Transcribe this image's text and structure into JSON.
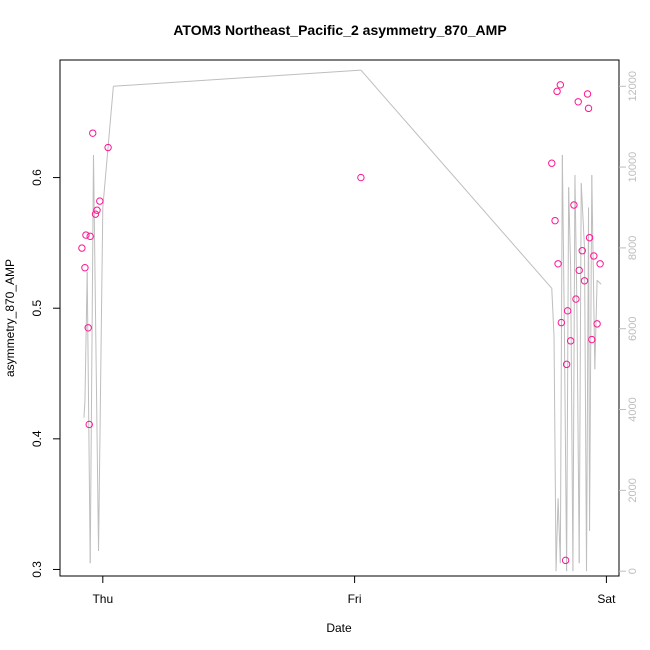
{
  "chart_data": {
    "type": "scatter",
    "title": "ATOM3 Northeast_Pacific_2 asymmetry_870_AMP",
    "xlabel": "Date",
    "ylabel": "asymmetry_870_AMP",
    "x_unit": "days since Wed 00:00",
    "xlim": [
      1.83,
      4.05
    ],
    "ylim": [
      0.295,
      0.69
    ],
    "y2lim": [
      -120,
      12650
    ],
    "x_ticks": [
      {
        "value": 2,
        "label": "Thu"
      },
      {
        "value": 3,
        "label": "Fri"
      },
      {
        "value": 4,
        "label": "Sat"
      }
    ],
    "y_ticks": [
      {
        "value": 0.3,
        "label": "0.3"
      },
      {
        "value": 0.4,
        "label": "0.4"
      },
      {
        "value": 0.5,
        "label": "0.5"
      },
      {
        "value": 0.6,
        "label": "0.6"
      }
    ],
    "y2_ticks": [
      {
        "value": 0,
        "label": "0"
      },
      {
        "value": 2000,
        "label": "2000"
      },
      {
        "value": 4000,
        "label": "4000"
      },
      {
        "value": 6000,
        "label": "6000"
      },
      {
        "value": 8000,
        "label": "8000"
      },
      {
        "value": 10000,
        "label": "10000"
      },
      {
        "value": 12000,
        "label": "12000"
      }
    ],
    "grid": false,
    "series": [
      {
        "name": "asymmetry_870_AMP",
        "axis": "left",
        "style": "points",
        "color": "#ff1493",
        "points": [
          [
            1.917,
            0.546
          ],
          [
            1.929,
            0.531
          ],
          [
            1.933,
            0.556
          ],
          [
            1.942,
            0.485
          ],
          [
            1.946,
            0.411
          ],
          [
            1.95,
            0.555
          ],
          [
            1.96,
            0.634
          ],
          [
            1.971,
            0.572
          ],
          [
            1.977,
            0.575
          ],
          [
            1.988,
            0.582
          ],
          [
            2.021,
            0.623
          ],
          [
            3.025,
            0.6
          ],
          [
            3.783,
            0.611
          ],
          [
            3.796,
            0.567
          ],
          [
            3.804,
            0.666
          ],
          [
            3.808,
            0.534
          ],
          [
            3.817,
            0.671
          ],
          [
            3.821,
            0.489
          ],
          [
            3.838,
            0.307
          ],
          [
            3.842,
            0.457
          ],
          [
            3.846,
            0.498
          ],
          [
            3.858,
            0.475
          ],
          [
            3.871,
            0.579
          ],
          [
            3.879,
            0.507
          ],
          [
            3.888,
            0.658
          ],
          [
            3.892,
            0.529
          ],
          [
            3.904,
            0.544
          ],
          [
            3.913,
            0.521
          ],
          [
            3.925,
            0.664
          ],
          [
            3.929,
            0.653
          ],
          [
            3.933,
            0.554
          ],
          [
            3.942,
            0.476
          ],
          [
            3.95,
            0.54
          ],
          [
            3.963,
            0.488
          ],
          [
            3.975,
            0.534
          ]
        ]
      },
      {
        "name": "secondary",
        "axis": "right",
        "style": "line",
        "color": "#bebebe",
        "points": [
          [
            1.925,
            3800
          ],
          [
            1.929,
            4200
          ],
          [
            1.938,
            7400
          ],
          [
            1.95,
            200
          ],
          [
            1.963,
            10300
          ],
          [
            1.983,
            500
          ],
          [
            2.0,
            9000
          ],
          [
            2.042,
            12000
          ],
          [
            3.025,
            12400
          ],
          [
            3.783,
            7000
          ],
          [
            3.792,
            5800
          ],
          [
            3.8,
            0
          ],
          [
            3.808,
            1800
          ],
          [
            3.817,
            200
          ],
          [
            3.825,
            10300
          ],
          [
            3.833,
            6000
          ],
          [
            3.842,
            0
          ],
          [
            3.85,
            9500
          ],
          [
            3.858,
            7500
          ],
          [
            3.867,
            0
          ],
          [
            3.875,
            9800
          ],
          [
            3.883,
            6500
          ],
          [
            3.892,
            200
          ],
          [
            3.9,
            9600
          ],
          [
            3.913,
            8000
          ],
          [
            3.921,
            0
          ],
          [
            3.929,
            9000
          ],
          [
            3.933,
            1000
          ],
          [
            3.942,
            9800
          ],
          [
            3.954,
            5000
          ],
          [
            3.963,
            7200
          ],
          [
            3.979,
            7100
          ]
        ]
      }
    ]
  }
}
